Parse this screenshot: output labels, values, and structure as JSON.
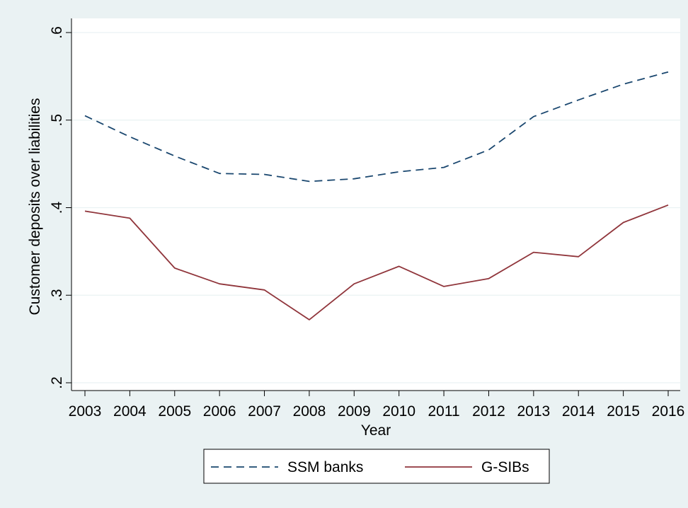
{
  "chart_data": {
    "type": "line",
    "title": "",
    "xlabel": "Year",
    "ylabel": "Customer deposits over liabilities",
    "x": [
      2003,
      2004,
      2005,
      2006,
      2007,
      2008,
      2009,
      2010,
      2011,
      2012,
      2013,
      2014,
      2015,
      2016
    ],
    "xlim": [
      2003,
      2016
    ],
    "ylim": [
      0.2,
      0.6
    ],
    "yticks": [
      0.2,
      0.3,
      0.4,
      0.5,
      0.6
    ],
    "ytick_labels": [
      ".2",
      ".3",
      ".4",
      ".5",
      ".6"
    ],
    "grid": true,
    "legend_position": "bottom",
    "series": [
      {
        "name": "SSM banks",
        "color": "#1a476f",
        "style": "dashed",
        "values": [
          0.505,
          0.481,
          0.459,
          0.439,
          0.438,
          0.43,
          0.433,
          0.441,
          0.446,
          0.466,
          0.504,
          0.523,
          0.541,
          0.555
        ]
      },
      {
        "name": "G-SIBs",
        "color": "#90353b",
        "style": "solid",
        "values": [
          0.396,
          0.388,
          0.331,
          0.313,
          0.306,
          0.272,
          0.313,
          0.333,
          0.31,
          0.319,
          0.349,
          0.344,
          0.383,
          0.403
        ]
      }
    ]
  }
}
